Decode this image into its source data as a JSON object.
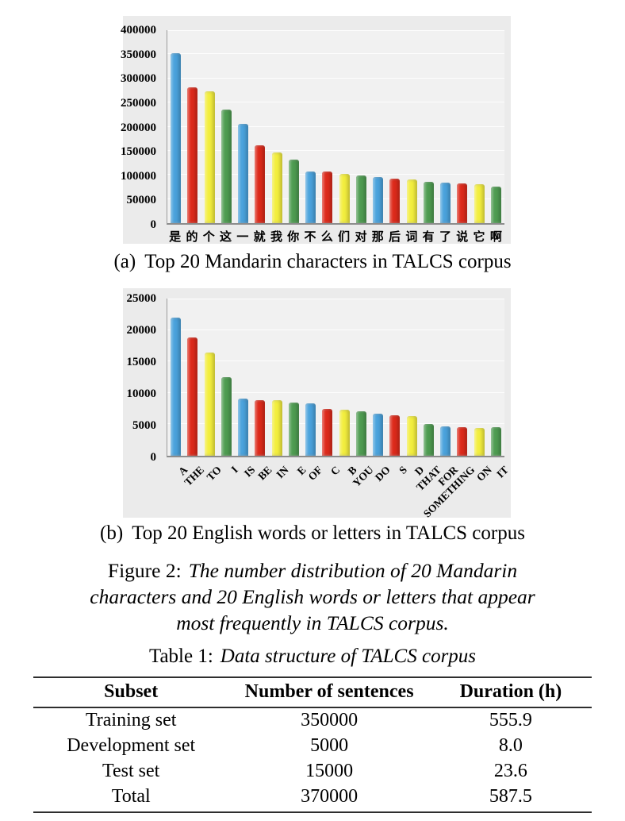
{
  "style": {
    "bar_color_cycle": [
      "#4aa2dc",
      "#dd2a1b",
      "#f3ee3e",
      "#4e9c51"
    ],
    "panel_background": "#ebebeb",
    "plot_background": "#f1f1f1"
  },
  "chart_data": [
    {
      "type": "bar",
      "caption_label": "(a)",
      "caption_text": "Top 20 Mandarin characters in TALCS corpus",
      "categories": [
        "是",
        "的",
        "个",
        "这",
        "一",
        "就",
        "我",
        "你",
        "不",
        "么",
        "们",
        "对",
        "那",
        "后",
        "词",
        "有",
        "了",
        "说",
        "它",
        "啊"
      ],
      "values": [
        352000,
        282000,
        273000,
        236000,
        205000,
        162000,
        146000,
        132000,
        107000,
        107000,
        102000,
        98000,
        96000,
        92000,
        91000,
        86000,
        84000,
        82000,
        81000,
        76000
      ],
      "xlabel": "",
      "ylabel": "",
      "ylim": [
        0,
        400000
      ],
      "ytick_step": 50000,
      "grid": true,
      "legend": "none",
      "rotated_labels": false
    },
    {
      "type": "bar",
      "caption_label": "(b)",
      "caption_text": "Top 20 English words or letters in TALCS corpus",
      "categories": [
        "A",
        "THE",
        "TO",
        "I",
        "IS",
        "BE",
        "IN",
        "E",
        "OF",
        "C",
        "B",
        "YOU",
        "DO",
        "S",
        "D",
        "THAT",
        "FOR",
        "SOMETHING",
        "ON",
        "IT"
      ],
      "values": [
        22000,
        18800,
        16400,
        12500,
        9100,
        8900,
        8800,
        8400,
        8300,
        7500,
        7300,
        7100,
        6700,
        6400,
        6300,
        5000,
        4700,
        4600,
        4400,
        4600
      ],
      "xlabel": "",
      "ylabel": "",
      "ylim": [
        0,
        25000
      ],
      "ytick_step": 5000,
      "grid": true,
      "legend": "none",
      "rotated_labels": true
    }
  ],
  "figure_caption": {
    "label": "Figure 2:",
    "line1": "The number distribution of 20 Mandarin",
    "line2": "characters and 20 English words or letters that appear",
    "line3": "most frequently in TALCS corpus."
  },
  "table": {
    "caption_label": "Table 1:",
    "caption_text": "Data structure of TALCS corpus",
    "columns": [
      "Subset",
      "Number of sentences",
      "Duration (h)"
    ],
    "rows": [
      [
        "Training set",
        "350000",
        "555.9"
      ],
      [
        "Development set",
        "5000",
        "8.0"
      ],
      [
        "Test set",
        "15000",
        "23.6"
      ],
      [
        "Total",
        "370000",
        "587.5"
      ]
    ]
  }
}
